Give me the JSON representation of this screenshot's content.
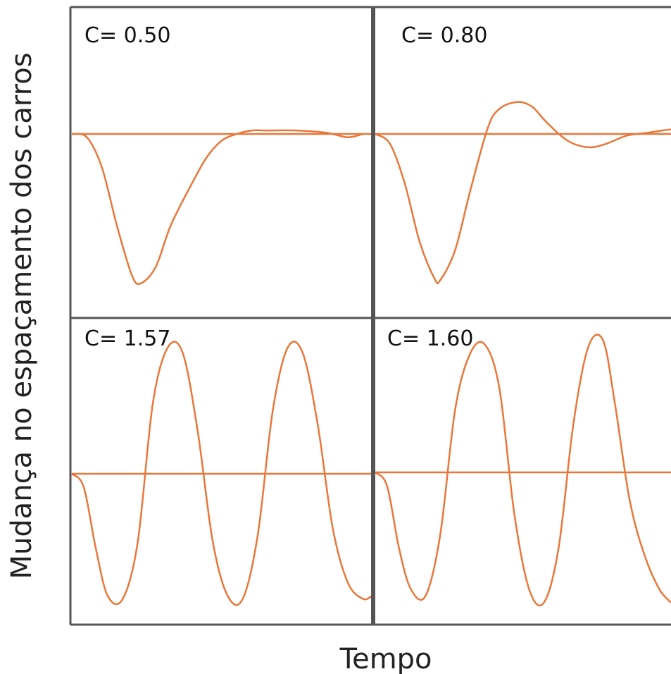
{
  "figure": {
    "ylabel": "Mudança no espaçamento dos carros",
    "xlabel": "Tempo",
    "line_color": "#e8773a",
    "frame_color": "#555555"
  },
  "chart_data": [
    {
      "type": "line",
      "title": "C= 0.50",
      "xlabel": "Tempo",
      "ylabel": "Mudança no espaçamento dos carros",
      "xlim": [
        0,
        1
      ],
      "ylim": [
        -1.1,
        1.1
      ],
      "baseline": 0,
      "series": [
        {
          "x": [
            0,
            0.05,
            0.1,
            0.15,
            0.2,
            0.23,
            0.28,
            0.33,
            0.4,
            0.45,
            0.5,
            0.55,
            0.6,
            0.65,
            0.75,
            0.85,
            0.92,
            0.97
          ],
          "values": [
            0,
            -0.02,
            -0.2,
            -0.55,
            -0.85,
            -0.9,
            -0.8,
            -0.55,
            -0.3,
            -0.14,
            -0.04,
            0.0,
            0.03,
            0.03,
            0.03,
            0.01,
            -0.02,
            0
          ]
        }
      ]
    },
    {
      "type": "line",
      "title": "C= 0.80",
      "xlabel": "Tempo",
      "ylabel": "Mudança no espaçamento dos carros",
      "xlim": [
        0,
        1
      ],
      "ylim": [
        -1.1,
        1.1
      ],
      "baseline": 0,
      "series": [
        {
          "x": [
            0,
            0.05,
            0.1,
            0.15,
            0.2,
            0.22,
            0.27,
            0.32,
            0.38,
            0.42,
            0.48,
            0.53,
            0.58,
            0.65,
            0.72,
            0.78,
            0.85,
            0.92,
            0.97,
            1.0
          ],
          "values": [
            0,
            -0.06,
            -0.3,
            -0.65,
            -0.87,
            -0.88,
            -0.7,
            -0.35,
            0.05,
            0.22,
            0.28,
            0.24,
            0.1,
            -0.04,
            -0.08,
            -0.06,
            -0.01,
            0.01,
            0.03,
            0.04
          ]
        }
      ]
    },
    {
      "type": "line",
      "title": "C= 1.57",
      "xlabel": "Tempo",
      "ylabel": "Mudança no espaçamento dos carros",
      "xlim": [
        0,
        1
      ],
      "ylim": [
        -1.1,
        1.1
      ],
      "baseline": 0,
      "series": [
        {
          "x": [
            0,
            0.04,
            0.08,
            0.12,
            0.17,
            0.22,
            0.27,
            0.32,
            0.37,
            0.42,
            0.47,
            0.52,
            0.57,
            0.62,
            0.67,
            0.72,
            0.77,
            0.82,
            0.87,
            0.92,
            0.97,
            1.0
          ],
          "values": [
            0,
            -0.1,
            -0.55,
            -0.9,
            -0.92,
            -0.5,
            0.5,
            0.9,
            0.86,
            0.3,
            -0.5,
            -0.9,
            -0.92,
            -0.45,
            0.45,
            0.9,
            0.86,
            0.35,
            -0.4,
            -0.8,
            -0.92,
            -0.9
          ]
        }
      ]
    },
    {
      "type": "line",
      "title": "C= 1.60",
      "xlabel": "Tempo",
      "ylabel": "Mudança no espaçamento dos carros",
      "xlim": [
        0,
        1
      ],
      "ylim": [
        -1.1,
        1.1
      ],
      "baseline": 0,
      "series": [
        {
          "x": [
            0,
            0.04,
            0.08,
            0.12,
            0.17,
            0.22,
            0.27,
            0.32,
            0.37,
            0.42,
            0.47,
            0.52,
            0.57,
            0.62,
            0.67,
            0.72,
            0.77,
            0.81,
            0.86,
            0.91,
            0.96,
            1.0
          ],
          "values": [
            0,
            -0.1,
            -0.55,
            -0.85,
            -0.9,
            -0.45,
            0.45,
            0.85,
            0.92,
            0.6,
            -0.3,
            -0.85,
            -0.95,
            -0.55,
            0.35,
            0.9,
            0.95,
            0.5,
            -0.2,
            -0.6,
            -0.85,
            -0.95
          ]
        }
      ]
    }
  ]
}
